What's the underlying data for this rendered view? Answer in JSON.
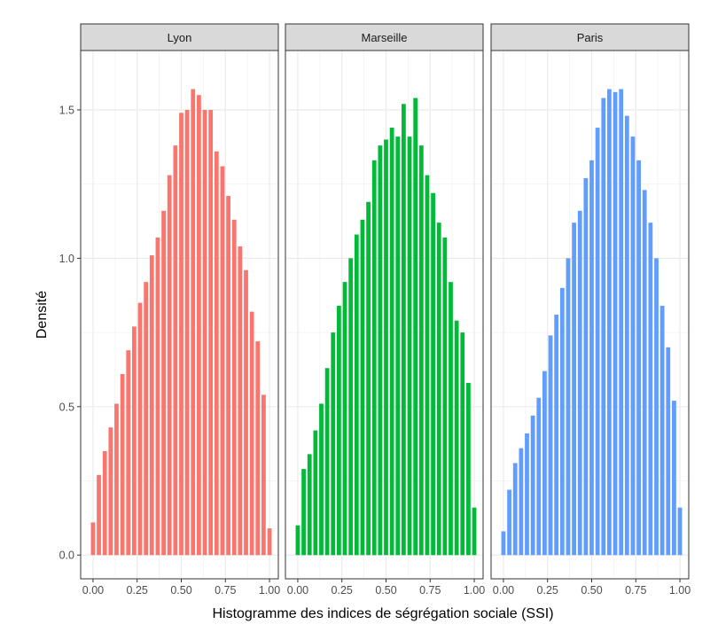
{
  "chart_data": {
    "type": "bar",
    "xlabel": "Histogramme des indices de ségrégation sociale (SSI)",
    "ylabel": "Densité",
    "xlim": [
      -0.07,
      1.05
    ],
    "ylim": [
      -0.08,
      1.7
    ],
    "x_ticks": [
      0,
      0.25,
      0.5,
      0.75,
      1
    ],
    "x_tick_labels": [
      "0.00",
      "0.25",
      "0.50",
      "0.75",
      "1.00"
    ],
    "y_ticks": [
      0,
      0.5,
      1,
      1.5
    ],
    "y_tick_labels": [
      "0.0",
      "0.5",
      "1.0",
      "1.5"
    ],
    "grid": true,
    "bin_centers": [
      0.0,
      0.0333,
      0.0667,
      0.1,
      0.1333,
      0.1667,
      0.2,
      0.2333,
      0.2667,
      0.3,
      0.3333,
      0.3667,
      0.4,
      0.4333,
      0.4667,
      0.5,
      0.5333,
      0.5667,
      0.6,
      0.6333,
      0.6667,
      0.7,
      0.7333,
      0.7667,
      0.8,
      0.8333,
      0.8667,
      0.9,
      0.9333,
      0.9667,
      1.0
    ],
    "panels": [
      {
        "name": "Lyon",
        "color": "#F8766D",
        "values": [
          0.11,
          0.27,
          0.35,
          0.43,
          0.51,
          0.61,
          0.69,
          0.77,
          0.85,
          0.92,
          1.01,
          1.07,
          1.16,
          1.28,
          1.38,
          1.49,
          1.5,
          1.57,
          1.55,
          1.5,
          1.5,
          1.36,
          1.31,
          1.21,
          1.13,
          1.04,
          0.96,
          0.82,
          0.72,
          0.54,
          0.09
        ]
      },
      {
        "name": "Marseille",
        "color": "#00BA38",
        "values": [
          0.1,
          0.29,
          0.34,
          0.42,
          0.51,
          0.63,
          0.75,
          0.84,
          0.92,
          1.0,
          1.08,
          1.13,
          1.19,
          1.33,
          1.38,
          1.4,
          1.44,
          1.41,
          1.52,
          1.41,
          1.54,
          1.38,
          1.28,
          1.22,
          1.12,
          1.07,
          0.92,
          0.79,
          0.75,
          0.58,
          0.16
        ]
      },
      {
        "name": "Paris",
        "color": "#619CFF",
        "values": [
          0.08,
          0.22,
          0.31,
          0.36,
          0.41,
          0.47,
          0.53,
          0.62,
          0.74,
          0.81,
          0.9,
          1.0,
          1.12,
          1.16,
          1.27,
          1.33,
          1.44,
          1.54,
          1.57,
          1.56,
          1.57,
          1.48,
          1.41,
          1.33,
          1.23,
          1.12,
          1.0,
          0.84,
          0.7,
          0.52,
          0.16
        ]
      }
    ]
  }
}
